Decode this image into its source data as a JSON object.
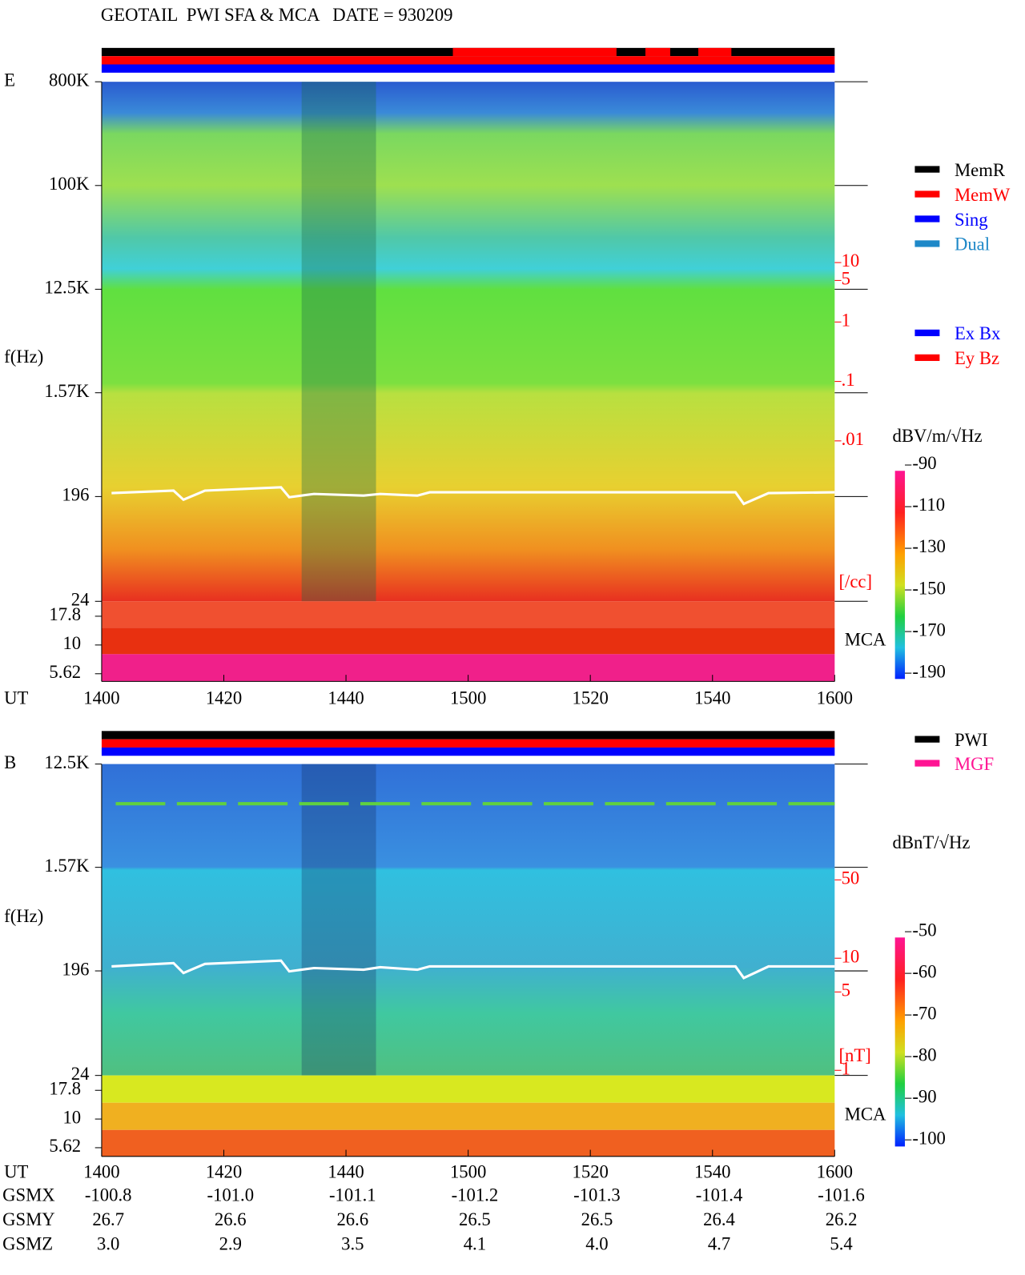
{
  "chart_data": [
    {
      "type": "spectrogram",
      "title": "GEOTAIL  PWI SFA & MCA   DATE = 930209",
      "panel_label": "E",
      "ylabel": "f(Hz)",
      "xlabel": "UT",
      "yscale": "log",
      "ylim": [
        24,
        800000
      ],
      "yticks": [
        {
          "value": 800000,
          "label": "800K"
        },
        {
          "value": 100000,
          "label": "100K"
        },
        {
          "value": 12500,
          "label": "12.5K"
        },
        {
          "value": 1570,
          "label": "1.57K"
        },
        196,
        24
      ],
      "mca_label": "MCA",
      "mca_ticks": [
        17.8,
        10,
        5.62
      ],
      "xticks": [
        "1400",
        "1420",
        "1440",
        "1500",
        "1520",
        "1540",
        "1600"
      ],
      "y2scale": "log",
      "y2lim": [
        2e-05,
        11000
      ],
      "y2_color": "#ff0000",
      "y2ticks": [
        10,
        5,
        1,
        {
          "value": 0.1,
          "label": ".1"
        },
        {
          "value": 0.01,
          "label": ".01"
        }
      ],
      "y2_unit": "[/cc]",
      "colorbar": {
        "label": "dBV/m/√Hz",
        "lim": [
          -190,
          -90
        ],
        "ticks": [
          -90,
          -110,
          -130,
          -150,
          -170,
          -190
        ]
      },
      "legend_groups": [
        [
          {
            "name": "MemR",
            "color": "#000000"
          },
          {
            "name": "MemW",
            "color": "#ff0000"
          },
          {
            "name": "Sing",
            "color": "#0000ff"
          },
          {
            "name": "Dual",
            "color": "#1e88c8"
          }
        ],
        [
          {
            "name": "Ex Bx",
            "color": "#0000ff"
          },
          {
            "name": "Ey Bz",
            "color": "#ff0000"
          }
        ]
      ]
    },
    {
      "type": "spectrogram",
      "panel_label": "B",
      "ylabel": "f(Hz)",
      "xlabel": "UT",
      "yscale": "log",
      "ylim": [
        24,
        12500
      ],
      "yticks": [
        {
          "value": 12500,
          "label": "12.5K"
        },
        {
          "value": 1570,
          "label": "1.57K"
        },
        196,
        24
      ],
      "mca_label": "MCA",
      "mca_ticks": [
        17.8,
        10,
        5.62
      ],
      "xticks": [
        "1400",
        "1420",
        "1440",
        "1500",
        "1520",
        "1540",
        "1600"
      ],
      "y2scale": "log",
      "y2lim": [
        0.9,
        540
      ],
      "y2_color": "#ff0000",
      "y2ticks": [
        50,
        10,
        5,
        1
      ],
      "y2_unit": "[nT]",
      "colorbar": {
        "label": "dBnT/√Hz",
        "lim": [
          -100,
          -50
        ],
        "ticks": [
          -50,
          -60,
          -70,
          -80,
          -90,
          -100
        ]
      },
      "legend_groups": [
        [
          {
            "name": "PWI",
            "color": "#000000"
          },
          {
            "name": "MGF",
            "color": "#ff1493"
          }
        ]
      ],
      "orbit": [
        {
          "name": "GSMX",
          "values": [
            "-100.8",
            "-101.0",
            "-101.1",
            "-101.2",
            "-101.3",
            "-101.4",
            "-101.6"
          ]
        },
        {
          "name": "GSMY",
          "values": [
            "26.7",
            "26.6",
            "26.6",
            "26.5",
            "26.5",
            "26.4",
            "26.2"
          ]
        },
        {
          "name": "GSMZ",
          "values": [
            "3.0",
            "2.9",
            "3.5",
            "4.1",
            "4.0",
            "4.7",
            "5.4"
          ]
        }
      ]
    }
  ]
}
